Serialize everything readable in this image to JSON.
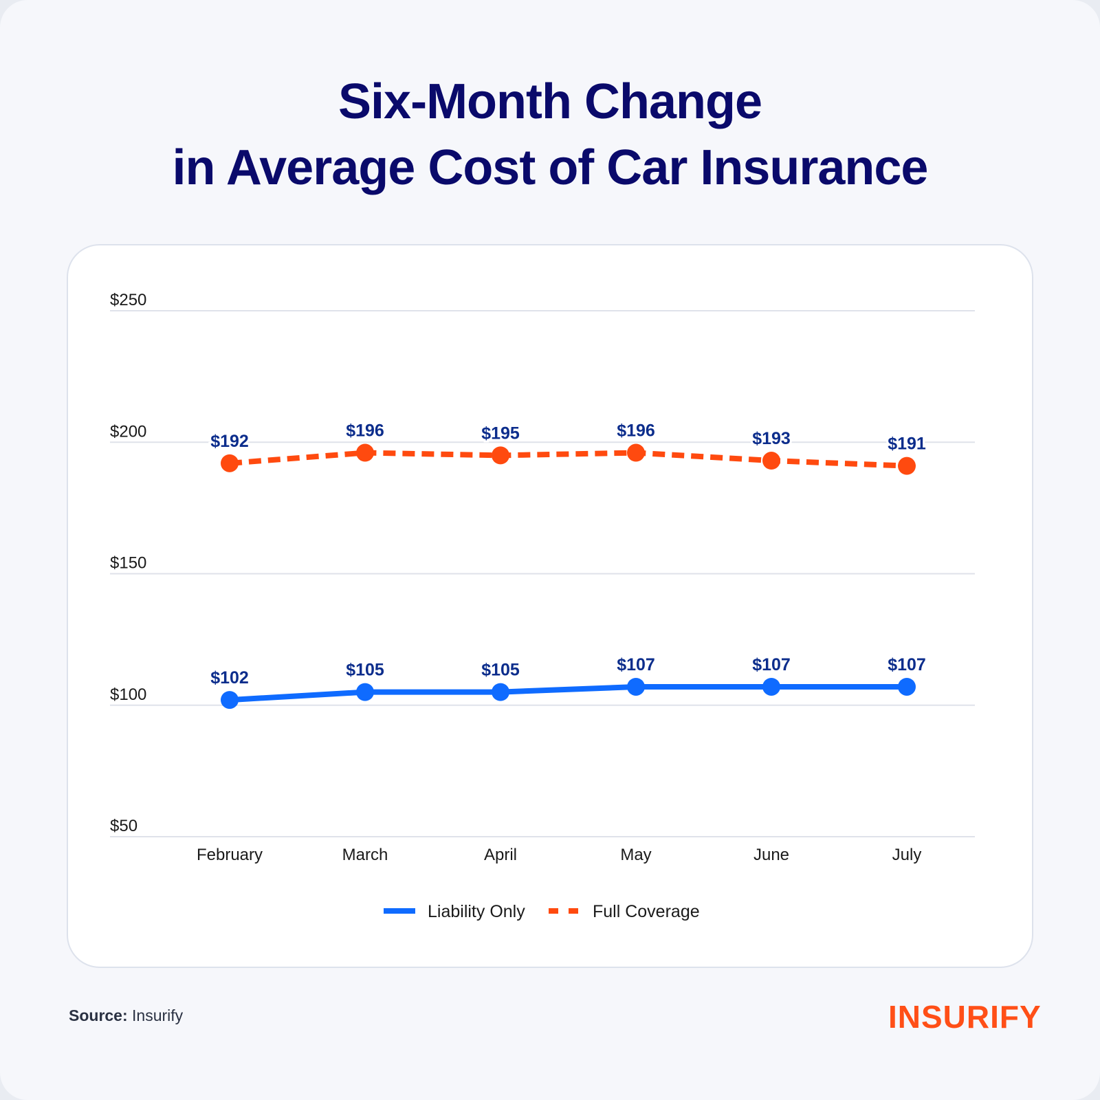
{
  "title": {
    "line1": "Six-Month Change",
    "line2": "in Average Cost of Car Insurance"
  },
  "source": {
    "label": "Source:",
    "value": "Insurify"
  },
  "logo": {
    "text": "INSURIFY",
    "color": "#ff4f17"
  },
  "chart_data": {
    "type": "line",
    "title": "Six-Month Change in Average Cost of Car Insurance",
    "xlabel": "",
    "ylabel": "",
    "categories": [
      "February",
      "March",
      "April",
      "May",
      "June",
      "July"
    ],
    "ylim": [
      50,
      250
    ],
    "yticks": [
      250,
      200,
      150,
      100,
      50
    ],
    "ytick_labels": [
      "$250",
      "$200",
      "$150",
      "$100",
      "$50"
    ],
    "grid": true,
    "legend_position": "bottom-center",
    "series": [
      {
        "name": "Liability Only",
        "color": "#0f6bff",
        "style": "solid",
        "values": [
          102,
          105,
          105,
          107,
          107,
          107
        ],
        "labels": [
          "$102",
          "$105",
          "$105",
          "$107",
          "$107",
          "$107"
        ]
      },
      {
        "name": "Full Coverage",
        "color": "#ff4a0f",
        "style": "dashed",
        "values": [
          192,
          196,
          195,
          196,
          193,
          191
        ],
        "labels": [
          "$192",
          "$196",
          "$195",
          "$196",
          "$193",
          "$191"
        ]
      }
    ],
    "label_color": "#0c2d8c"
  }
}
